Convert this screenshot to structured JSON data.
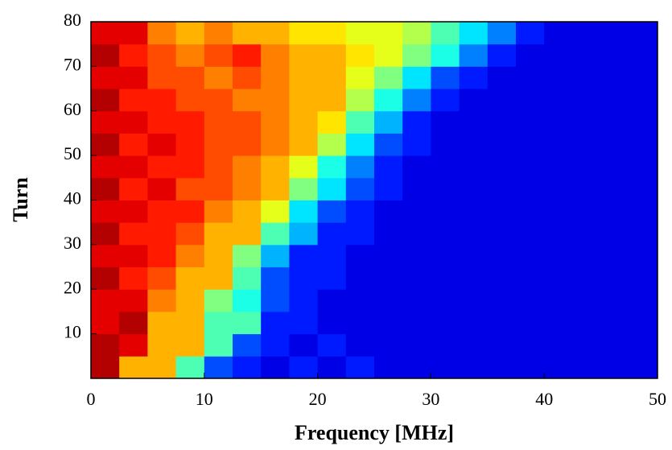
{
  "chart_data": {
    "type": "heatmap",
    "x_label": "Frequency [MHz]",
    "y_label": "Turn",
    "xlim": [
      0,
      50
    ],
    "ylim": [
      0,
      80
    ],
    "xticks": [
      0,
      10,
      20,
      30,
      40,
      50
    ],
    "yticks": [
      10,
      20,
      30,
      40,
      50,
      60,
      70,
      80
    ],
    "colormap": "jet",
    "z": [
      [
        0.95,
        0.7,
        0.7,
        0.45,
        0.2,
        0.15,
        0.1,
        0.15,
        0.1,
        0.15,
        0.1,
        0.1,
        0.1,
        0.1,
        0.1,
        0.1,
        0.1,
        0.1,
        0.1,
        0.1
      ],
      [
        0.95,
        0.9,
        0.7,
        0.7,
        0.45,
        0.2,
        0.15,
        0.1,
        0.15,
        0.1,
        0.1,
        0.1,
        0.1,
        0.1,
        0.1,
        0.1,
        0.1,
        0.1,
        0.1,
        0.1
      ],
      [
        0.9,
        0.95,
        0.7,
        0.7,
        0.45,
        0.45,
        0.15,
        0.15,
        0.1,
        0.1,
        0.1,
        0.1,
        0.1,
        0.1,
        0.1,
        0.1,
        0.1,
        0.1,
        0.1,
        0.1
      ],
      [
        0.9,
        0.9,
        0.75,
        0.7,
        0.5,
        0.4,
        0.2,
        0.15,
        0.1,
        0.1,
        0.1,
        0.1,
        0.1,
        0.1,
        0.1,
        0.1,
        0.1,
        0.1,
        0.1,
        0.1
      ],
      [
        0.95,
        0.85,
        0.8,
        0.7,
        0.7,
        0.45,
        0.2,
        0.15,
        0.15,
        0.1,
        0.1,
        0.1,
        0.1,
        0.1,
        0.1,
        0.1,
        0.1,
        0.1,
        0.1,
        0.1
      ],
      [
        0.9,
        0.9,
        0.85,
        0.75,
        0.7,
        0.5,
        0.3,
        0.15,
        0.15,
        0.1,
        0.1,
        0.1,
        0.1,
        0.1,
        0.1,
        0.1,
        0.1,
        0.1,
        0.1,
        0.1
      ],
      [
        0.95,
        0.85,
        0.85,
        0.8,
        0.7,
        0.7,
        0.45,
        0.3,
        0.15,
        0.15,
        0.1,
        0.1,
        0.1,
        0.1,
        0.1,
        0.1,
        0.1,
        0.1,
        0.1,
        0.1
      ],
      [
        0.9,
        0.9,
        0.85,
        0.85,
        0.75,
        0.7,
        0.6,
        0.35,
        0.2,
        0.15,
        0.1,
        0.1,
        0.1,
        0.1,
        0.1,
        0.1,
        0.1,
        0.1,
        0.1,
        0.1
      ],
      [
        0.95,
        0.85,
        0.9,
        0.8,
        0.8,
        0.75,
        0.7,
        0.5,
        0.35,
        0.2,
        0.15,
        0.1,
        0.1,
        0.1,
        0.1,
        0.1,
        0.1,
        0.1,
        0.1,
        0.1
      ],
      [
        0.9,
        0.9,
        0.85,
        0.85,
        0.8,
        0.75,
        0.7,
        0.6,
        0.4,
        0.25,
        0.15,
        0.1,
        0.1,
        0.1,
        0.1,
        0.1,
        0.1,
        0.1,
        0.1,
        0.1
      ],
      [
        0.95,
        0.85,
        0.9,
        0.85,
        0.8,
        0.8,
        0.75,
        0.7,
        0.55,
        0.35,
        0.2,
        0.15,
        0.1,
        0.1,
        0.1,
        0.1,
        0.1,
        0.1,
        0.1,
        0.1
      ],
      [
        0.9,
        0.9,
        0.85,
        0.85,
        0.8,
        0.8,
        0.75,
        0.7,
        0.65,
        0.45,
        0.3,
        0.15,
        0.1,
        0.1,
        0.1,
        0.1,
        0.1,
        0.1,
        0.1,
        0.1
      ],
      [
        0.95,
        0.85,
        0.85,
        0.8,
        0.8,
        0.75,
        0.75,
        0.7,
        0.7,
        0.55,
        0.4,
        0.25,
        0.15,
        0.1,
        0.1,
        0.1,
        0.1,
        0.1,
        0.1,
        0.1
      ],
      [
        0.9,
        0.9,
        0.8,
        0.8,
        0.75,
        0.8,
        0.75,
        0.7,
        0.7,
        0.6,
        0.5,
        0.35,
        0.2,
        0.15,
        0.1,
        0.1,
        0.1,
        0.1,
        0.1,
        0.1
      ],
      [
        0.95,
        0.85,
        0.8,
        0.75,
        0.8,
        0.85,
        0.75,
        0.7,
        0.7,
        0.65,
        0.6,
        0.5,
        0.4,
        0.25,
        0.15,
        0.1,
        0.1,
        0.1,
        0.1,
        0.1
      ],
      [
        0.9,
        0.9,
        0.75,
        0.7,
        0.75,
        0.7,
        0.7,
        0.65,
        0.65,
        0.6,
        0.6,
        0.55,
        0.45,
        0.35,
        0.25,
        0.15,
        0.1,
        0.1,
        0.1,
        0.1
      ]
    ]
  }
}
